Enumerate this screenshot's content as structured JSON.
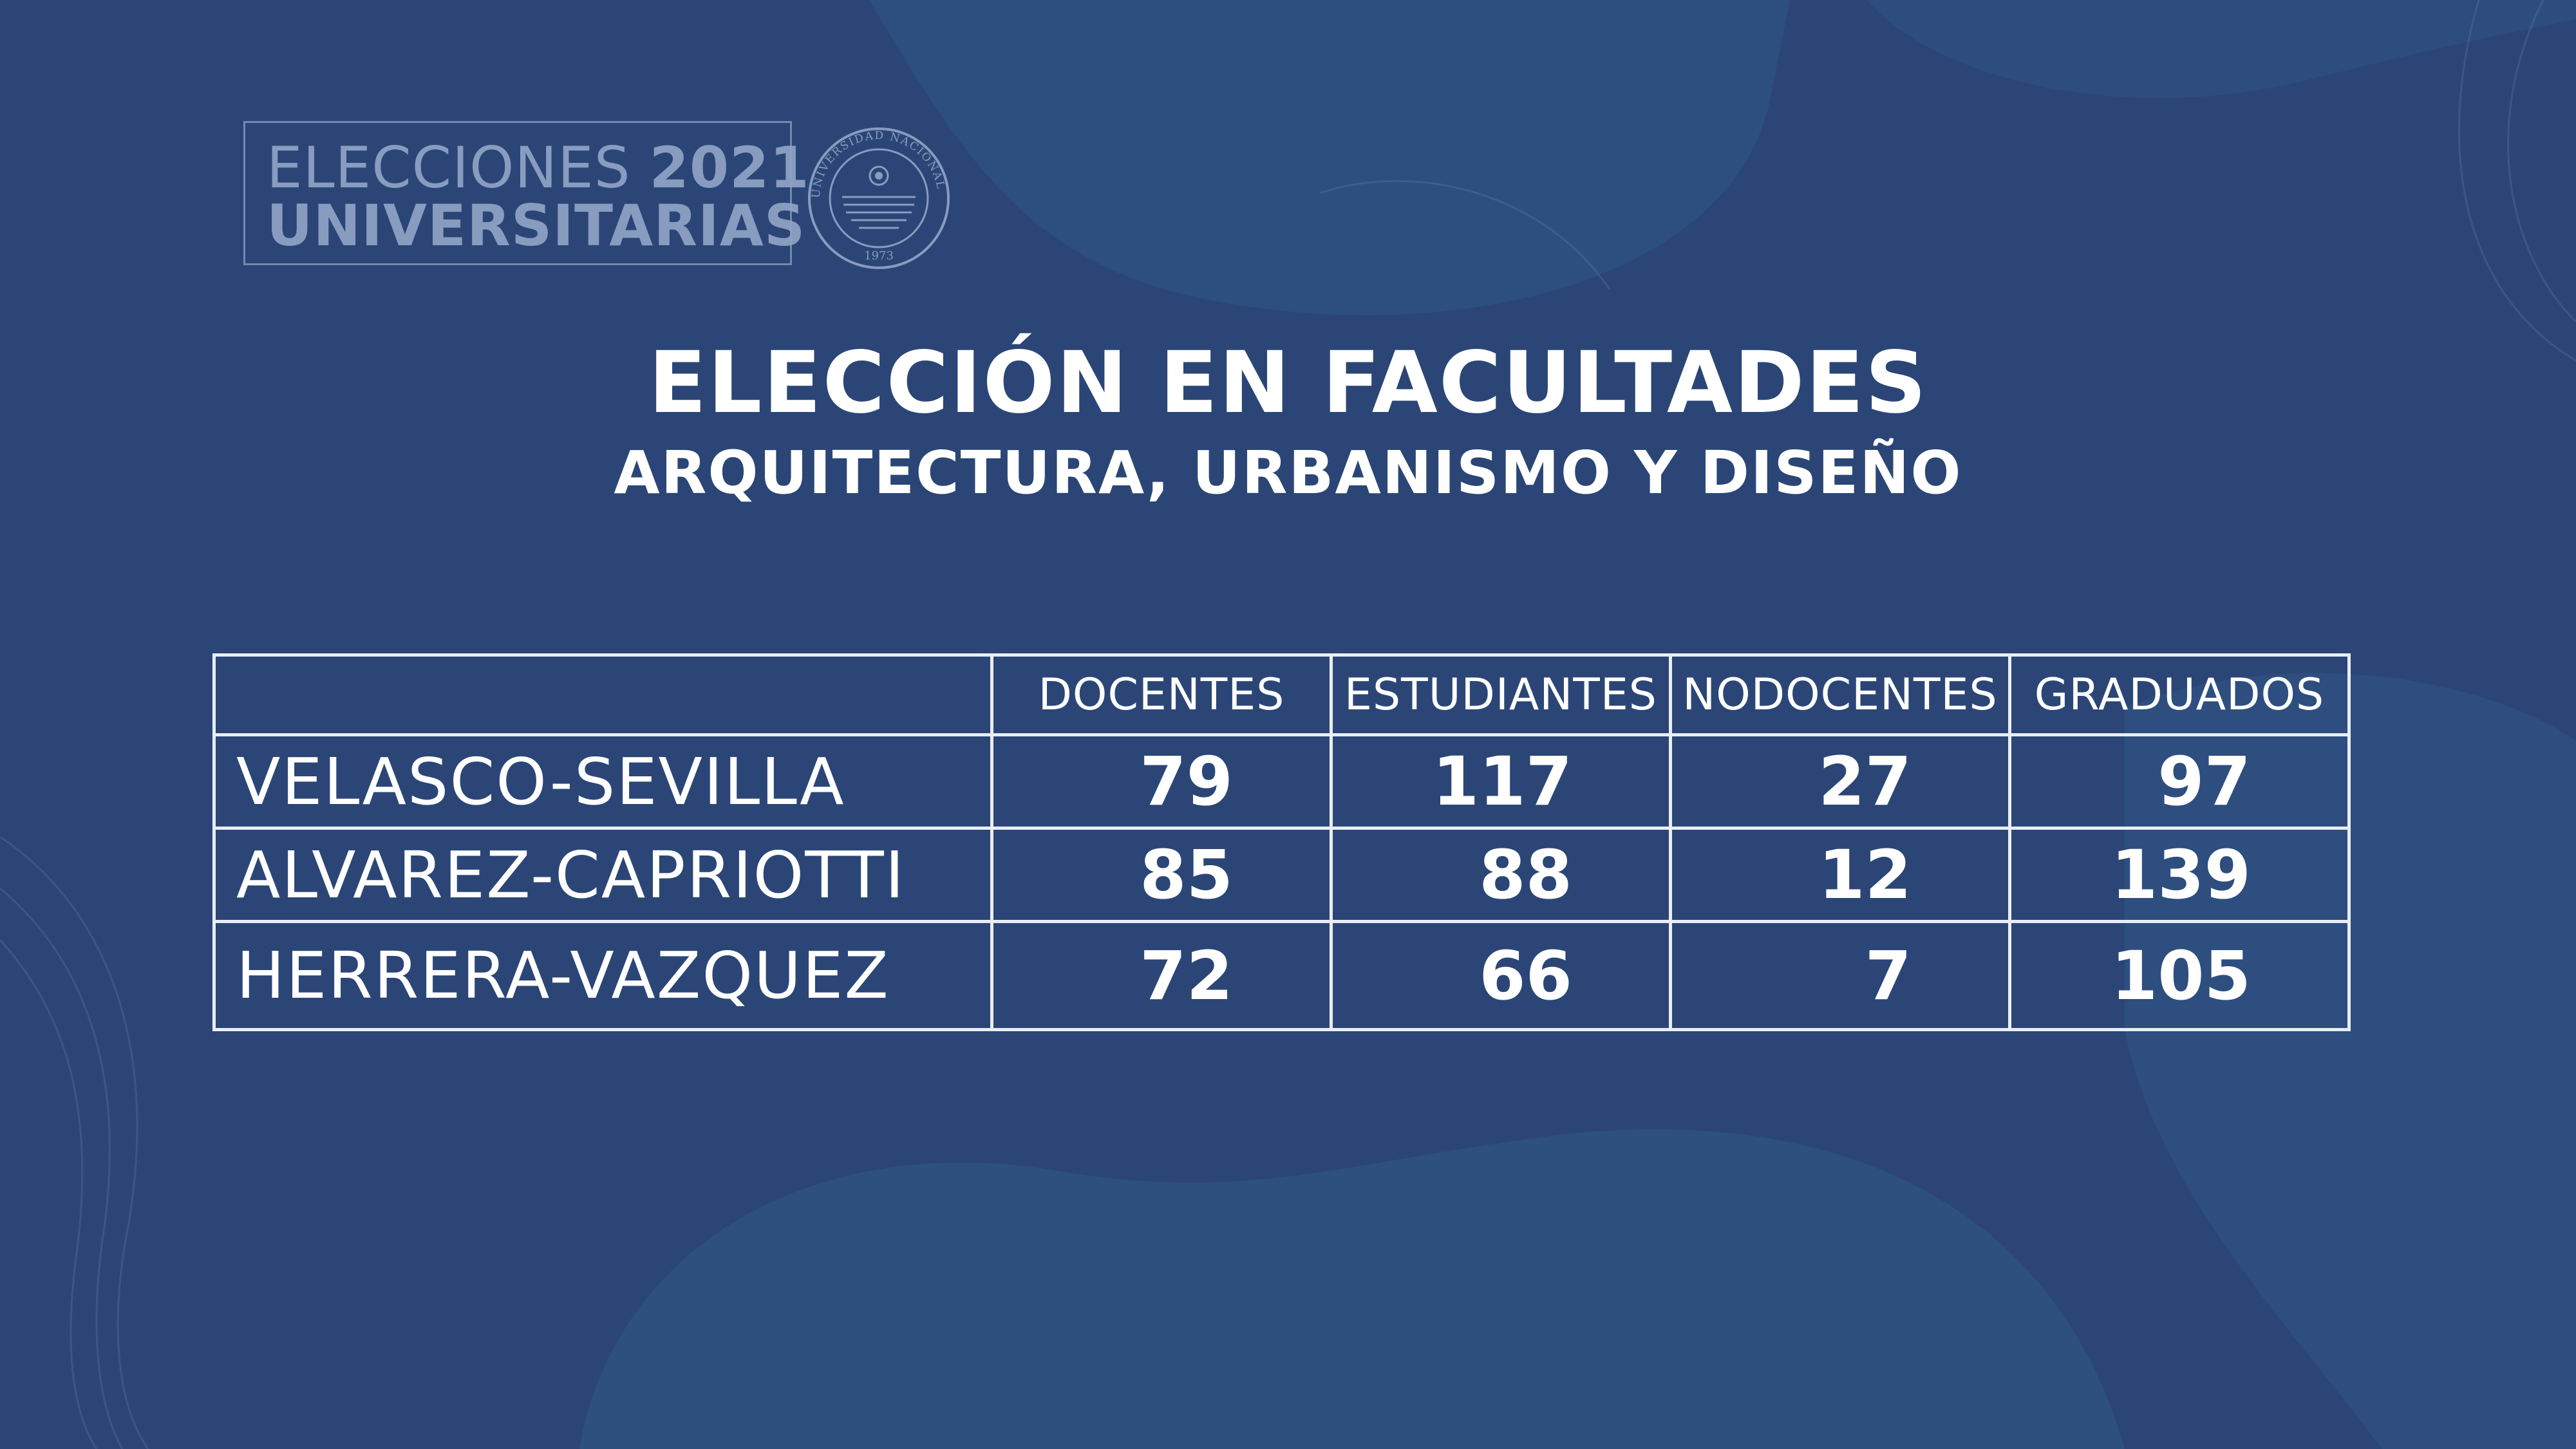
{
  "header": {
    "badge_word1": "ELECCIONES",
    "badge_year": "2021",
    "badge_word2": "UNIVERSITARIAS",
    "seal": {
      "ring_text": "UNIVERSIDAD NACIONAL DE SAN JUAN",
      "year": "1973"
    }
  },
  "title": "ELECCIÓN EN FACULTADES",
  "subtitle": "ARQUITECTURA, URBANISMO Y DISEÑO",
  "table": {
    "columns": [
      "",
      "DOCENTES",
      "ESTUDIANTES",
      "NODOCENTES",
      "GRADUADOS"
    ],
    "rows": [
      {
        "name": "VELASCO-SEVILLA",
        "values": [
          "79",
          "117",
          "27",
          "97"
        ]
      },
      {
        "name": "ALVAREZ-CAPRIOTTI",
        "values": [
          "85",
          "88",
          "12",
          "139"
        ]
      },
      {
        "name": "HERRERA-VAZQUEZ",
        "values": [
          "72",
          "66",
          "7",
          "105"
        ]
      }
    ]
  },
  "colors": {
    "background": "#2b4676",
    "background_shapes": "#2f5686",
    "text": "#ffffff",
    "badge_text": "#91a5c8"
  }
}
